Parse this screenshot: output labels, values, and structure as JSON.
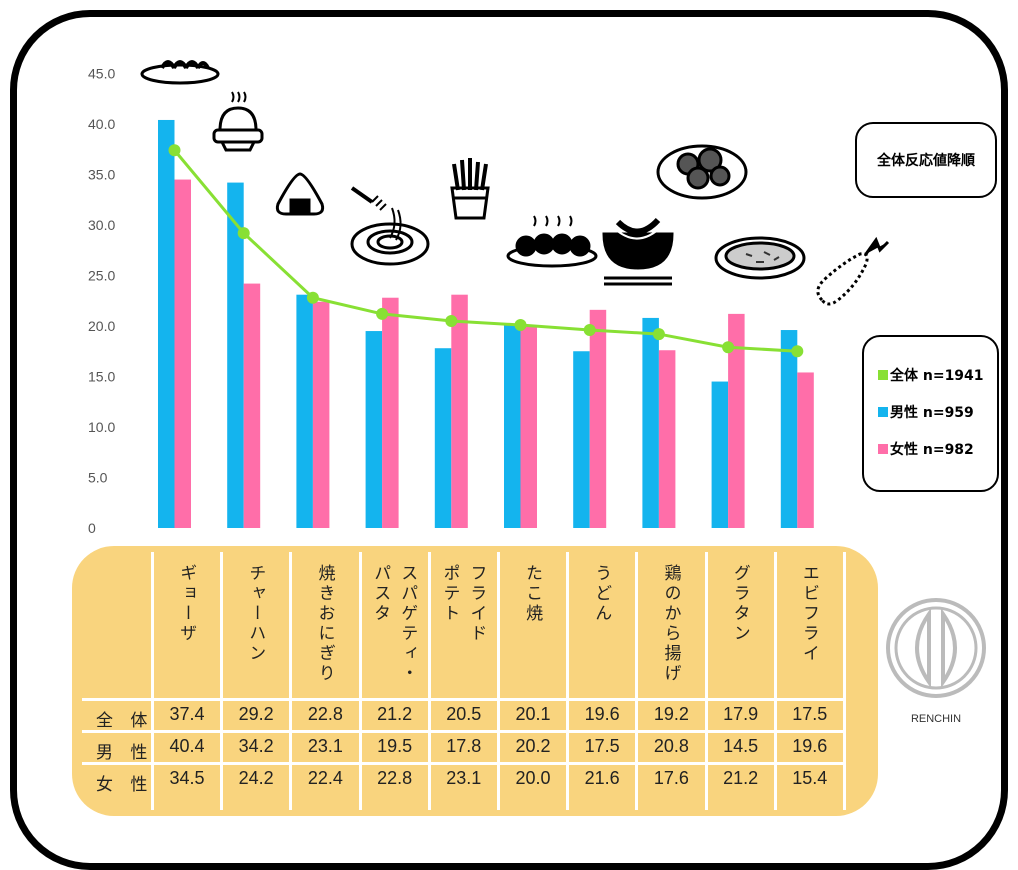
{
  "chart_data": {
    "type": "bar",
    "categories": [
      "ギョーザ",
      "チャーハン",
      "焼きおにぎり",
      "スパゲティ・パスタ",
      "フライドポテト",
      "たこ焼",
      "うどん",
      "鶏のから揚げ",
      "グラタン",
      "エビフライ"
    ],
    "category_columns": [
      [
        "ギョーザ"
      ],
      [
        "チャーハン"
      ],
      [
        "焼きおにぎり"
      ],
      [
        "スパゲティ・",
        "パスタ"
      ],
      [
        "フライド",
        "ポテト"
      ],
      [
        "たこ焼"
      ],
      [
        "うどん"
      ],
      [
        "鶏のから揚げ"
      ],
      [
        "グラタン"
      ],
      [
        "エビフライ"
      ]
    ],
    "series": [
      {
        "name": "全体 n=1941",
        "type": "line",
        "color": "#88e034",
        "values": [
          37.4,
          29.2,
          22.8,
          21.2,
          20.5,
          20.1,
          19.6,
          19.2,
          17.9,
          17.5
        ]
      },
      {
        "name": "男性 n=959",
        "type": "bar",
        "color": "#14b4ee",
        "values": [
          40.4,
          34.2,
          23.1,
          19.5,
          17.8,
          20.2,
          17.5,
          20.8,
          14.5,
          19.6
        ]
      },
      {
        "name": "女性 n=982",
        "type": "bar",
        "color": "#ff6ea9",
        "values": [
          34.5,
          24.2,
          22.4,
          22.8,
          23.1,
          20.0,
          21.6,
          17.6,
          21.2,
          15.4
        ]
      }
    ],
    "yticks": [
      "0",
      "5.0",
      "10.0",
      "15.0",
      "20.0",
      "25.0",
      "30.0",
      "35.0",
      "40.0",
      "45.0"
    ],
    "ylim": [
      0,
      45
    ],
    "legend": [
      "全体 n=1941",
      "男性 n=959",
      "女性 n=982"
    ],
    "legend_position": "right",
    "grid": false
  },
  "sort_label": "全体反応値降順",
  "table": {
    "row_labels": [
      "全 体",
      "男 性",
      "女 性"
    ],
    "rows": [
      [
        "37.4",
        "29.2",
        "22.8",
        "21.2",
        "20.5",
        "20.1",
        "19.6",
        "19.2",
        "17.9",
        "17.5"
      ],
      [
        "40.4",
        "34.2",
        "23.1",
        "19.5",
        "17.8",
        "20.2",
        "17.5",
        "20.8",
        "14.5",
        "19.6"
      ],
      [
        "34.5",
        "24.2",
        "22.4",
        "22.8",
        "23.1",
        "20.0",
        "21.6",
        "17.6",
        "21.2",
        "15.4"
      ]
    ]
  },
  "logo_text": "RENCHIN",
  "colors": {
    "total": "#88e034",
    "male": "#14b4ee",
    "female": "#ff6ea9",
    "table_bg": "#f9d47e"
  },
  "icons": [
    "gyoza-icon",
    "fried-rice-icon",
    "onigiri-icon",
    "pasta-icon",
    "fries-icon",
    "takoyaki-icon",
    "udon-icon",
    "karaage-icon",
    "gratin-icon",
    "ebi-fry-icon"
  ]
}
